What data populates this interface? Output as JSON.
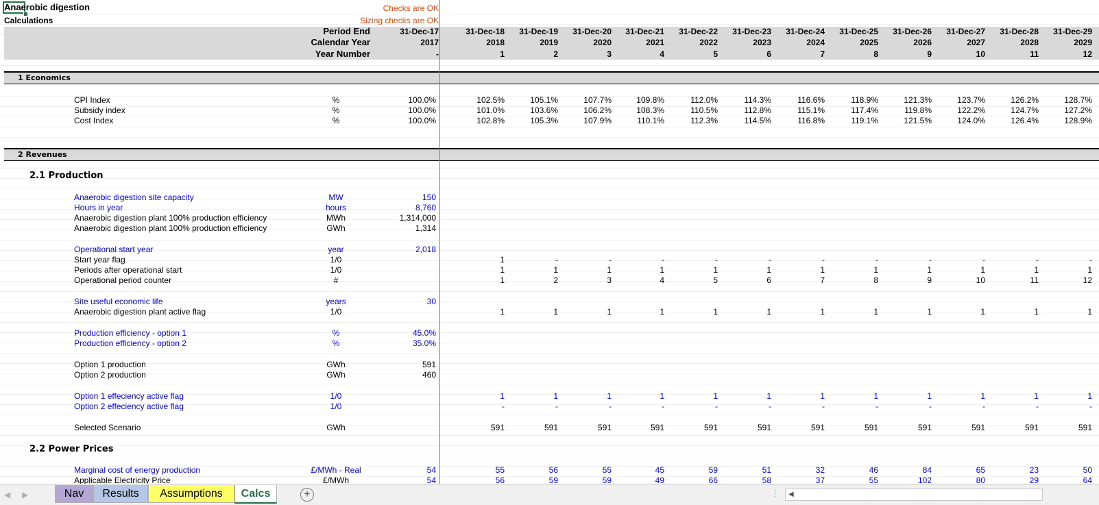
{
  "title": "Anaerobic digestion",
  "subtitle": "Calculations",
  "checks": {
    "checks_ok": "Checks are OK",
    "sizing_ok": "Sizing checks are OK"
  },
  "header": {
    "period_end_label": "Period End",
    "calendar_year_label": "Calendar Year",
    "year_number_label": "Year Number",
    "base_period_end": "31-Dec-17",
    "base_calendar_year": "2017",
    "base_year_number": "-",
    "period_ends": [
      "31-Dec-18",
      "31-Dec-19",
      "31-Dec-20",
      "31-Dec-21",
      "31-Dec-22",
      "31-Dec-23",
      "31-Dec-24",
      "31-Dec-25",
      "31-Dec-26",
      "31-Dec-27",
      "31-Dec-28",
      "31-Dec-29"
    ],
    "calendar_years": [
      "2018",
      "2019",
      "2020",
      "2021",
      "2022",
      "2023",
      "2024",
      "2025",
      "2026",
      "2027",
      "2028",
      "2029"
    ],
    "year_numbers": [
      "1",
      "2",
      "3",
      "4",
      "5",
      "6",
      "7",
      "8",
      "9",
      "10",
      "11",
      "12"
    ]
  },
  "sections": {
    "economics": "1 Economics",
    "revenues": "2 Revenues",
    "production": "2.1  Production",
    "power_prices": "2.2  Power Prices"
  },
  "rows": {
    "cpi": {
      "label": "CPI Index",
      "unit": "%",
      "base": "100.0%",
      "values": [
        "102.5%",
        "105.1%",
        "107.7%",
        "109.8%",
        "112.0%",
        "114.3%",
        "116.6%",
        "118.9%",
        "121.3%",
        "123.7%",
        "126.2%",
        "128.7%"
      ]
    },
    "subsidy": {
      "label": "Subsidy index",
      "unit": "%",
      "base": "100.0%",
      "values": [
        "101.0%",
        "103.6%",
        "106.2%",
        "108.3%",
        "110.5%",
        "112.8%",
        "115.1%",
        "117.4%",
        "119.8%",
        "122.2%",
        "124.7%",
        "127.2%"
      ]
    },
    "cost": {
      "label": "Cost Index",
      "unit": "%",
      "base": "100.0%",
      "values": [
        "102.8%",
        "105.3%",
        "107.9%",
        "110.1%",
        "112.3%",
        "114.5%",
        "116.8%",
        "119.1%",
        "121.5%",
        "124.0%",
        "126.4%",
        "128.9%"
      ]
    },
    "capacity": {
      "label": "Anaerobic digestion site capacity",
      "unit": "MW",
      "base": "150"
    },
    "hours": {
      "label": "Hours in year",
      "unit": "hours",
      "base": "8,760"
    },
    "eff_mwh": {
      "label": "Anaerobic digestion plant 100% production efficiency",
      "unit": "MWh",
      "base": "1,314,000"
    },
    "eff_gwh": {
      "label": "Anaerobic digestion plant 100% production efficiency",
      "unit": "GWh",
      "base": "1,314"
    },
    "op_start": {
      "label": "Operational start year",
      "unit": "year",
      "base": "2,018"
    },
    "start_flag": {
      "label": "Start year flag",
      "unit": "1/0",
      "values": [
        "1",
        "-",
        "-",
        "-",
        "-",
        "-",
        "-",
        "-",
        "-",
        "-",
        "-",
        "-"
      ]
    },
    "after_start": {
      "label": "Periods after operational start",
      "unit": "1/0",
      "values": [
        "1",
        "1",
        "1",
        "1",
        "1",
        "1",
        "1",
        "1",
        "1",
        "1",
        "1",
        "1"
      ]
    },
    "counter": {
      "label": "Operational period counter",
      "unit": "#",
      "values": [
        "1",
        "2",
        "3",
        "4",
        "5",
        "6",
        "7",
        "8",
        "9",
        "10",
        "11",
        "12"
      ]
    },
    "life": {
      "label": "Site useful economic life",
      "unit": "years",
      "base": "30"
    },
    "active": {
      "label": "Anaerobic digestion plant active flag",
      "unit": "1/0",
      "values": [
        "1",
        "1",
        "1",
        "1",
        "1",
        "1",
        "1",
        "1",
        "1",
        "1",
        "1",
        "1"
      ]
    },
    "opt1_eff": {
      "label": "Production efficiency - option 1",
      "unit": "%",
      "base": "45.0%"
    },
    "opt2_eff": {
      "label": "Production efficiency - option 2",
      "unit": "%",
      "base": "35.0%"
    },
    "opt1_prod": {
      "label": "Option 1 production",
      "unit": "GWh",
      "base": "591"
    },
    "opt2_prod": {
      "label": "Option 2 production",
      "unit": "GWh",
      "base": "460"
    },
    "opt1_flag": {
      "label": "Option 1 effeciency active flag",
      "unit": "1/0",
      "values": [
        "1",
        "1",
        "1",
        "1",
        "1",
        "1",
        "1",
        "1",
        "1",
        "1",
        "1",
        "1"
      ]
    },
    "opt2_flag": {
      "label": "Option 2 effeciency active flag",
      "unit": "1/0",
      "values": [
        "-",
        "-",
        "-",
        "-",
        "-",
        "-",
        "-",
        "-",
        "-",
        "-",
        "-",
        "-"
      ]
    },
    "selected": {
      "label": "Selected Scenario",
      "unit": "GWh",
      "values": [
        "591",
        "591",
        "591",
        "591",
        "591",
        "591",
        "591",
        "591",
        "591",
        "591",
        "591",
        "591"
      ]
    },
    "marginal": {
      "label": "Marginal cost of energy production",
      "unit": "£/MWh - Real",
      "base": "54",
      "values": [
        "55",
        "56",
        "55",
        "45",
        "59",
        "51",
        "32",
        "46",
        "84",
        "65",
        "23",
        "50"
      ]
    },
    "elec_price": {
      "label": "Applicable Electricity Price",
      "unit": "£/MWh",
      "base": "54",
      "values": [
        "56",
        "59",
        "59",
        "49",
        "66",
        "58",
        "37",
        "55",
        "102",
        "80",
        "29",
        "64"
      ]
    }
  },
  "tabs": [
    {
      "label": "Nav",
      "color": "#b4a7d6"
    },
    {
      "label": "Results",
      "color": "#b4c7e7"
    },
    {
      "label": "Assumptions",
      "color": "#ffff66"
    },
    {
      "label": "Calcs",
      "color": "#ffffff",
      "active": true
    }
  ],
  "colors": {
    "input_blue": "#0000ff",
    "check_orange": "#ff4500",
    "header_gray": "#d9d9d9",
    "active_tab_text": "#217346"
  }
}
